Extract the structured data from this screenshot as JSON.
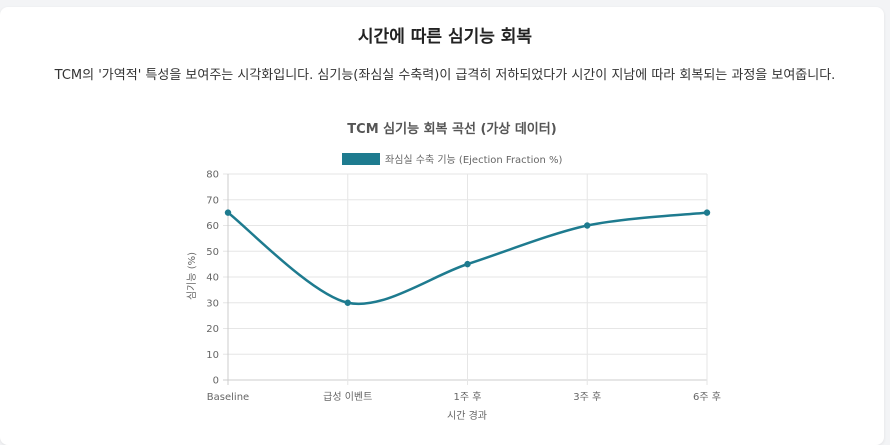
{
  "page": {
    "title": "시간에 따른 심기능 회복",
    "description": "TCM의 '가역적' 특성을 보여주는 시각화입니다. 심기능(좌심실 수축력)이 급격히 저하되었다가 시간이 지남에 따라 회복되는 과정을 보여줍니다."
  },
  "chart_data": {
    "type": "line",
    "title": "TCM 심기능 회복 곡선 (가상 데이터)",
    "xlabel": "시간 경과",
    "ylabel": "심기능 (%)",
    "categories": [
      "Baseline",
      "급성 이벤트",
      "1주 후",
      "3주 후",
      "6주 후"
    ],
    "ylim": [
      0,
      80
    ],
    "yticks": [
      0,
      10,
      20,
      30,
      40,
      50,
      60,
      70,
      80
    ],
    "grid": true,
    "legend_position": "top",
    "series": [
      {
        "name": "좌심실 수축 기능 (Ejection Fraction %)",
        "values": [
          65,
          30,
          45,
          60,
          65
        ],
        "color": "#1e7b8f"
      }
    ]
  }
}
